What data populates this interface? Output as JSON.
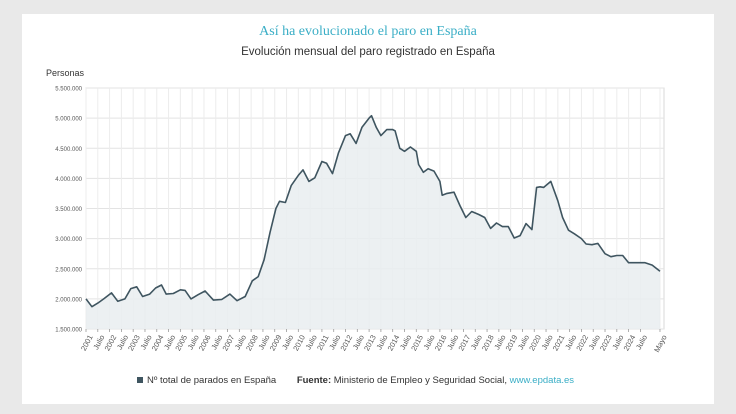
{
  "header": {
    "title": "Así ha evolucionado el paro en España",
    "subtitle": "Evolución mensual del paro registrado en España"
  },
  "footer": {
    "legend_label": "Nº total de parados en España",
    "source_label": "Fuente:",
    "source_text": "Ministerio de Empleo y Seguridad Social,",
    "source_link": "www.epdata.es"
  },
  "chart_data": {
    "type": "area",
    "ylabel": "Personas",
    "ylim": [
      1500000,
      5500000
    ],
    "yticks": [
      1500000,
      2000000,
      2500000,
      3000000,
      3500000,
      4000000,
      4500000,
      5000000,
      5500000
    ],
    "ytick_labels": [
      "1.500.000",
      "2.000.000",
      "2.500.000",
      "3.000.000",
      "3.500.000",
      "4.000.000",
      "4.500.000",
      "5.000.000",
      "5.500.000"
    ],
    "xlim": [
      2001,
      2025.5
    ],
    "xticks": [
      2001,
      2001.5,
      2002,
      2002.5,
      2003,
      2003.5,
      2004,
      2004.5,
      2005,
      2005.5,
      2006,
      2006.5,
      2007,
      2007.5,
      2008,
      2008.5,
      2009,
      2009.5,
      2010,
      2010.5,
      2011,
      2011.5,
      2012,
      2012.5,
      2013,
      2013.5,
      2014,
      2014.5,
      2015,
      2015.5,
      2016,
      2016.5,
      2017,
      2017.5,
      2018,
      2018.5,
      2019,
      2019.5,
      2020,
      2020.5,
      2021,
      2021.5,
      2022,
      2022.5,
      2023,
      2023.5,
      2024,
      2024.5,
      2025.33
    ],
    "xtick_labels": [
      "2001",
      "Julio",
      "2002",
      "Julio",
      "2003",
      "Julio",
      "2004",
      "Julio",
      "2005",
      "Julio",
      "2006",
      "Julio",
      "2007",
      "Julio",
      "2008",
      "Julio",
      "2009",
      "Julio",
      "2010",
      "Julio",
      "2011",
      "Julio",
      "2012",
      "Julio",
      "2013",
      "Julio",
      "2014",
      "Julio",
      "2015",
      "Julio",
      "2016",
      "Julio",
      "2017",
      "Julio",
      "2018",
      "Julio",
      "2019",
      "Julio",
      "2020",
      "Julio",
      "2021",
      "Julio",
      "2022",
      "Julio",
      "2023",
      "Julio",
      "2024",
      "Julio",
      "Mayo"
    ],
    "grid": true,
    "series": [
      {
        "name": "Nº total de parados en España",
        "color": "#3f5560",
        "x": [
          2001.0,
          2001.25,
          2001.5,
          2001.75,
          2002.08,
          2002.35,
          2002.65,
          2002.9,
          2003.15,
          2003.4,
          2003.7,
          2003.95,
          2004.2,
          2004.4,
          2004.7,
          2005.0,
          2005.2,
          2005.45,
          2005.75,
          2006.05,
          2006.4,
          2006.75,
          2007.1,
          2007.4,
          2007.75,
          2008.05,
          2008.3,
          2008.55,
          2008.8,
          2009.05,
          2009.2,
          2009.45,
          2009.7,
          2010.0,
          2010.2,
          2010.45,
          2010.7,
          2011.0,
          2011.2,
          2011.45,
          2011.7,
          2012.0,
          2012.2,
          2012.45,
          2012.7,
          2013.0,
          2013.1,
          2013.3,
          2013.5,
          2013.75,
          2014.0,
          2014.1,
          2014.3,
          2014.5,
          2014.75,
          2015.0,
          2015.1,
          2015.3,
          2015.5,
          2015.75,
          2016.0,
          2016.1,
          2016.3,
          2016.6,
          2016.85,
          2017.1,
          2017.35,
          2017.65,
          2017.9,
          2018.15,
          2018.4,
          2018.65,
          2018.9,
          2019.15,
          2019.4,
          2019.65,
          2019.9,
          2020.1,
          2020.25,
          2020.4,
          2020.7,
          2021.0,
          2021.2,
          2021.45,
          2021.7,
          2022.0,
          2022.2,
          2022.45,
          2022.7,
          2023.0,
          2023.25,
          2023.5,
          2023.75,
          2024.0,
          2024.2,
          2024.45,
          2024.7,
          2025.0,
          2025.33
        ],
        "values": [
          2000000,
          1870000,
          1930000,
          2000000,
          2100000,
          1960000,
          2000000,
          2170000,
          2200000,
          2040000,
          2080000,
          2180000,
          2230000,
          2080000,
          2090000,
          2150000,
          2140000,
          2000000,
          2070000,
          2130000,
          1980000,
          1990000,
          2080000,
          1970000,
          2040000,
          2300000,
          2370000,
          2650000,
          3100000,
          3500000,
          3620000,
          3600000,
          3880000,
          4050000,
          4140000,
          3950000,
          4010000,
          4280000,
          4250000,
          4080000,
          4420000,
          4710000,
          4740000,
          4580000,
          4850000,
          5000000,
          5040000,
          4850000,
          4710000,
          4810000,
          4810000,
          4790000,
          4500000,
          4450000,
          4520000,
          4450000,
          4230000,
          4100000,
          4160000,
          4120000,
          3950000,
          3720000,
          3750000,
          3770000,
          3550000,
          3350000,
          3450000,
          3400000,
          3350000,
          3170000,
          3260000,
          3200000,
          3200000,
          3010000,
          3050000,
          3250000,
          3150000,
          3850000,
          3860000,
          3850000,
          3950000,
          3630000,
          3350000,
          3140000,
          3080000,
          3000000,
          2910000,
          2900000,
          2920000,
          2750000,
          2700000,
          2720000,
          2720000,
          2600000,
          2600000,
          2600000,
          2600000,
          2560000,
          2460000
        ]
      }
    ]
  }
}
